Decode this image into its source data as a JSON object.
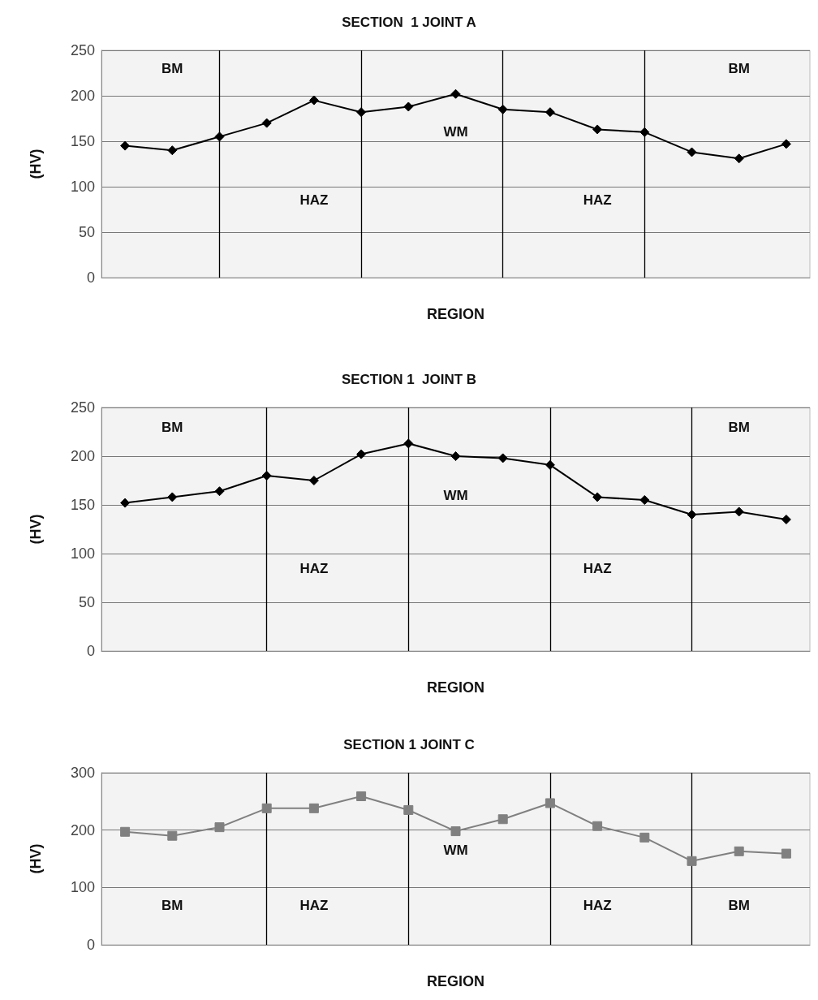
{
  "chart_data": [
    {
      "type": "line",
      "title": "SECTION  1 JOINT A",
      "xlabel": "REGION",
      "ylabel": "(HV)",
      "categories": [
        null,
        null,
        null,
        null,
        null,
        null,
        null,
        null,
        null,
        null,
        null,
        null,
        null,
        null,
        null
      ],
      "ylim": [
        0,
        250
      ],
      "yticks": [
        0,
        50,
        100,
        150,
        200,
        250
      ],
      "grid": true,
      "marker": "diamond",
      "line_style": "solid",
      "series": [
        {
          "color": "#000000",
          "values": [
            145,
            140,
            155,
            170,
            195,
            182,
            188,
            202,
            185,
            182,
            163,
            160,
            138,
            131,
            147
          ]
        }
      ],
      "annotations": [
        "BM",
        "HAZ",
        "WM",
        "HAZ",
        "BM"
      ]
    },
    {
      "type": "line",
      "title": "SECTION 1  JOINT B",
      "xlabel": "REGION",
      "ylabel": "(HV)",
      "categories": [
        null,
        null,
        null,
        null,
        null,
        null,
        null,
        null,
        null,
        null,
        null,
        null,
        null,
        null,
        null
      ],
      "ylim": [
        0,
        250
      ],
      "yticks": [
        0,
        50,
        100,
        150,
        200,
        250
      ],
      "grid": true,
      "marker": "diamond",
      "line_style": "solid",
      "series": [
        {
          "color": "#000000",
          "values": [
            152,
            158,
            164,
            180,
            175,
            202,
            213,
            200,
            198,
            191,
            158,
            155,
            140,
            143,
            135
          ]
        }
      ],
      "annotations": [
        "BM",
        "HAZ",
        "WM",
        "HAZ",
        "BM"
      ]
    },
    {
      "type": "line",
      "title": "SECTION 1 JOINT C",
      "xlabel": "REGION",
      "ylabel": "(HV)",
      "categories": [
        null,
        null,
        null,
        null,
        null,
        null,
        null,
        null,
        null,
        null,
        null,
        null,
        null,
        null,
        null
      ],
      "ylim": [
        0,
        300
      ],
      "yticks": [
        0,
        100,
        200,
        300
      ],
      "grid": true,
      "marker": "square",
      "line_style": "solid",
      "series": [
        {
          "color": "#808080",
          "values": [
            197,
            190,
            205,
            238,
            238,
            259,
            235,
            198,
            219,
            247,
            207,
            187,
            146,
            163,
            159
          ]
        }
      ],
      "annotations": [
        "BM",
        "HAZ",
        "WM",
        "HAZ",
        "BM"
      ]
    }
  ]
}
